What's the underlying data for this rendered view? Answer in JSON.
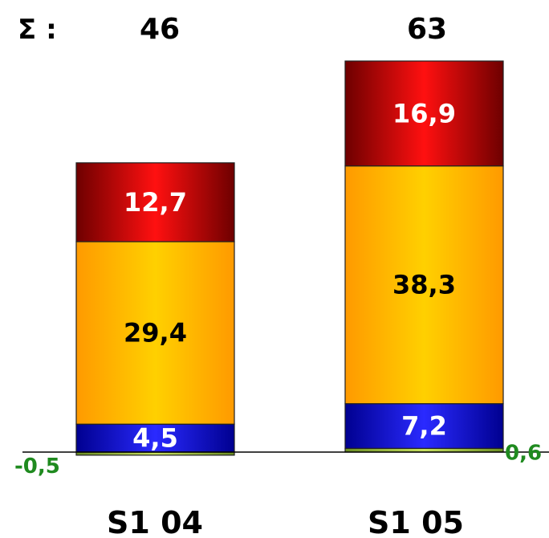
{
  "chart_data": {
    "type": "bar",
    "stacked": true,
    "categories": [
      "S1 04",
      "S1 05"
    ],
    "series": [
      {
        "values": [
          -0.5,
          0.6
        ],
        "labels": [
          "-0,5",
          "0,6"
        ],
        "color": "#9bbb3b",
        "label_color": "#1f8a1f"
      },
      {
        "values": [
          4.5,
          7.2
        ],
        "labels": [
          "4,5",
          "7,2"
        ],
        "color": "#1818c8",
        "label_color": "#ffffff"
      },
      {
        "values": [
          29.4,
          38.3
        ],
        "labels": [
          "29,4",
          "38,3"
        ],
        "color": "#ffb400",
        "label_color": "#000000"
      },
      {
        "values": [
          12.7,
          16.9
        ],
        "labels": [
          "12,7",
          "16,9"
        ],
        "color": "#d40000",
        "label_color": "#ffffff"
      }
    ],
    "sum_label": "Σ :",
    "totals": [
      "46",
      "63"
    ],
    "grid": false,
    "legend": "none"
  }
}
